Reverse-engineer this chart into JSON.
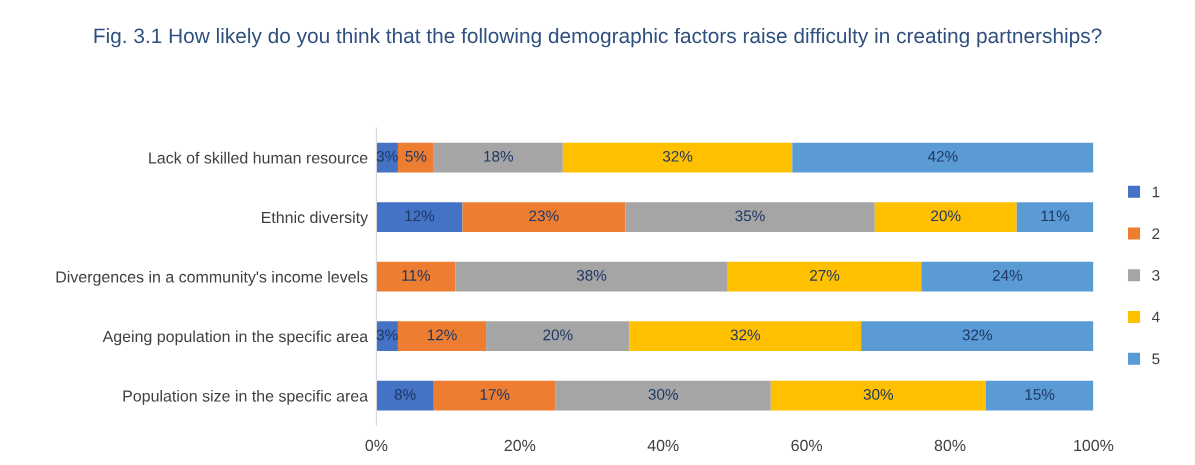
{
  "chart_data": {
    "type": "bar",
    "orientation": "horizontal",
    "stacked": true,
    "title": "Fig. 3.1 How likely do you think that the following demographic factors raise difficulty in creating partnerships?",
    "categories": [
      "Lack of skilled human resource",
      "Ethnic diversity",
      "Divergences in a community's income levels",
      "Ageing population in the specific area",
      "Population size in the specific area"
    ],
    "series": [
      {
        "name": "1",
        "color": "#4472c4",
        "values": [
          3,
          12,
          0,
          3,
          8
        ],
        "value_labels": [
          "3%",
          "12%",
          null,
          "3%",
          "8%"
        ]
      },
      {
        "name": "2",
        "color": "#ed7d31",
        "values": [
          5,
          22.7,
          11,
          12.3,
          17
        ],
        "value_labels": [
          "5%",
          "23%",
          "11%",
          "12%",
          "17%"
        ]
      },
      {
        "name": "3",
        "color": "#a5a5a5",
        "values": [
          18,
          34.8,
          38,
          20,
          30
        ],
        "value_labels": [
          "18%",
          "35%",
          "38%",
          "20%",
          "30%"
        ]
      },
      {
        "name": "4",
        "color": "#ffc000",
        "values": [
          32,
          19.8,
          27,
          32.3,
          30
        ],
        "value_labels": [
          "32%",
          "20%",
          "27%",
          "32%",
          "30%"
        ]
      },
      {
        "name": "5",
        "color": "#5b9bd5",
        "values": [
          42,
          10.7,
          24,
          32.4,
          15
        ],
        "value_labels": [
          "42%",
          "11%",
          "24%",
          "32%",
          "15%"
        ]
      }
    ],
    "xlim": [
      0,
      100
    ],
    "xticks": [
      {
        "value": 0,
        "label": "0%"
      },
      {
        "value": 20,
        "label": "20%"
      },
      {
        "value": 40,
        "label": "40%"
      },
      {
        "value": 60,
        "label": "60%"
      },
      {
        "value": 80,
        "label": "80%"
      },
      {
        "value": 100,
        "label": "100%"
      }
    ],
    "grid": false,
    "legend": "right"
  }
}
